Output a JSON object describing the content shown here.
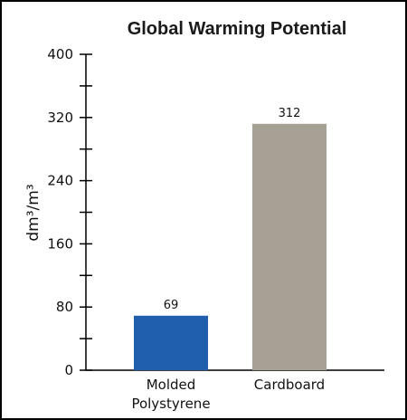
{
  "chart_data": {
    "type": "bar",
    "title": "Global Warming Potential",
    "ylabel": "dm³/m³",
    "xlabel": "",
    "ylim": [
      0,
      400
    ],
    "yticks": [
      0,
      80,
      160,
      240,
      320,
      400
    ],
    "minor_tick_step": 40,
    "grid": false,
    "categories": [
      [
        "Molded",
        "Polystyrene"
      ],
      [
        "Cardboard"
      ]
    ],
    "values": [
      69,
      312
    ],
    "value_labels": [
      "69",
      "312"
    ],
    "colors": [
      "#1f5fae",
      "#a7a095"
    ]
  }
}
